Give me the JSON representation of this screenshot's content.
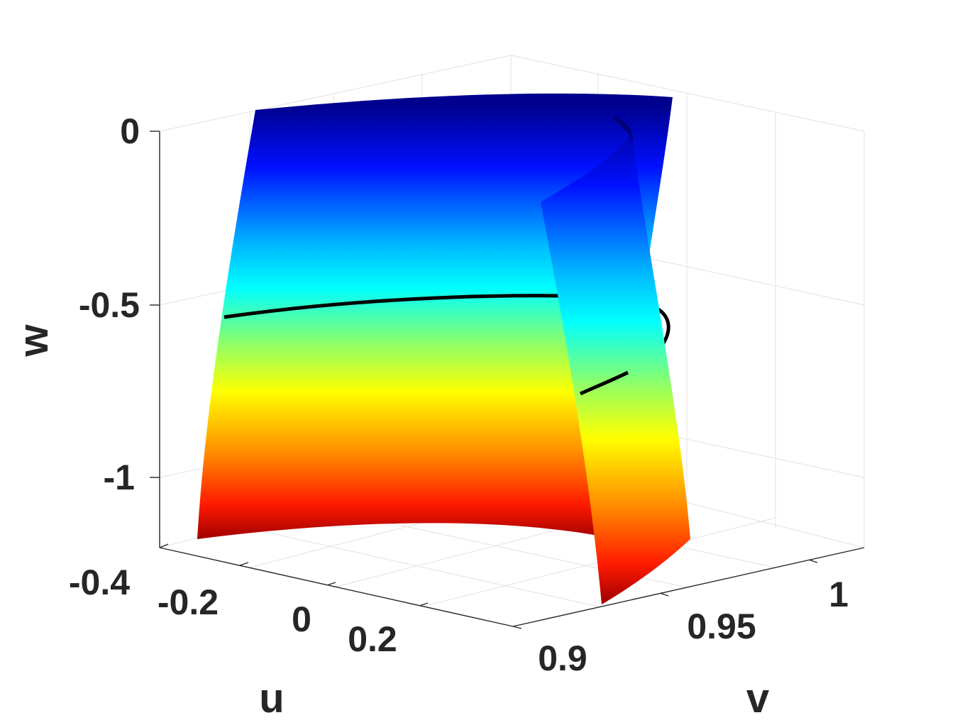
{
  "chart_data": {
    "type": "surface3d",
    "title": "",
    "xlabel": "u",
    "ylabel": "v",
    "zlabel": "w",
    "x_ticks": [
      "-0.4",
      "-0.2",
      "0",
      "0.2"
    ],
    "y_ticks": [
      "0.9",
      "0.95",
      "1"
    ],
    "z_ticks": [
      "0",
      "-0.5",
      "-1"
    ],
    "xlim": [
      -0.4,
      0.4
    ],
    "ylim": [
      0.88,
      1.02
    ],
    "zlim": [
      -1.2,
      0.1
    ],
    "grid": true,
    "colormap": "jet",
    "color_by": "w",
    "surfaces": [
      {
        "name": "",
        "description": "folded sheet in v, front panel",
        "w_range": [
          -1.18,
          0.05
        ]
      },
      {
        "name": "",
        "description": "folded sheet in v, curled back panel",
        "w_range": [
          -1.2,
          0.05
        ]
      }
    ],
    "curve": {
      "name": "",
      "color": "#000000",
      "w_level": -0.5
    }
  }
}
